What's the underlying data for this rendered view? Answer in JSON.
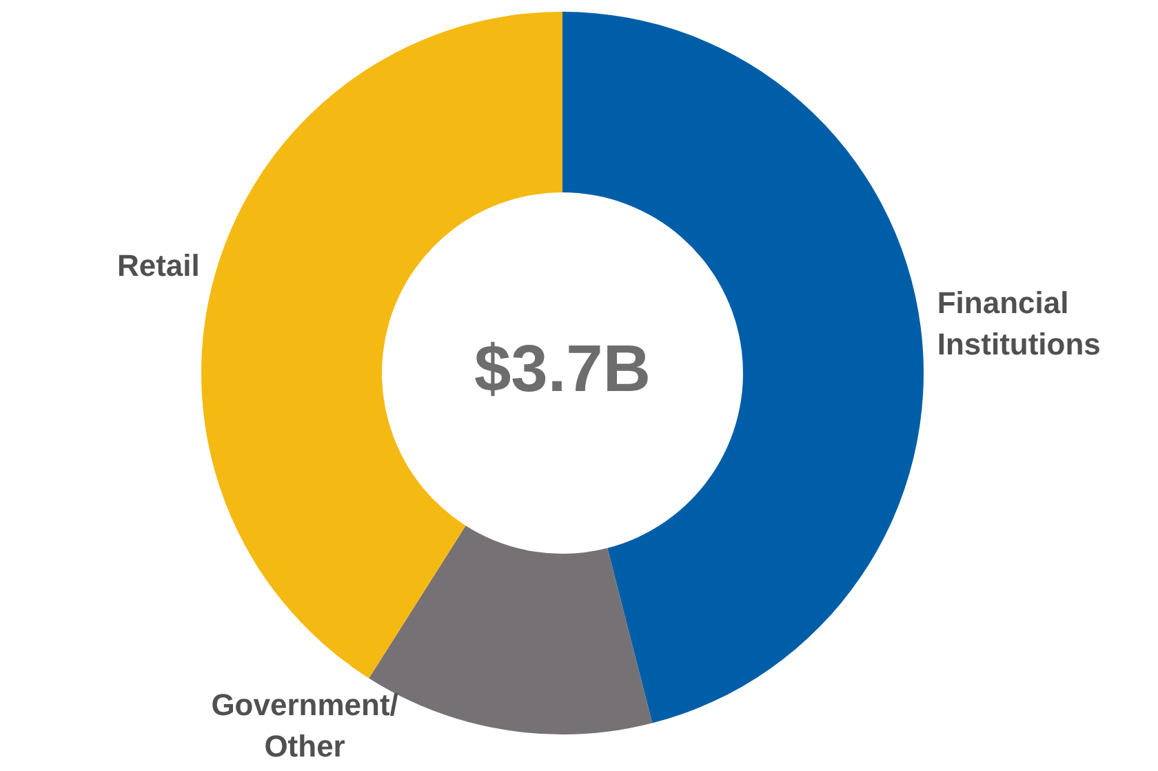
{
  "chart_data": {
    "type": "donut",
    "categories": [
      "Financial Institutions",
      "Government/ Other",
      "Retail"
    ],
    "values": [
      46,
      13,
      41
    ],
    "colors": [
      "#005ea8",
      "#767174",
      "#f5b913"
    ],
    "annotations": [
      "$3.7B"
    ],
    "legend": false
  }
}
